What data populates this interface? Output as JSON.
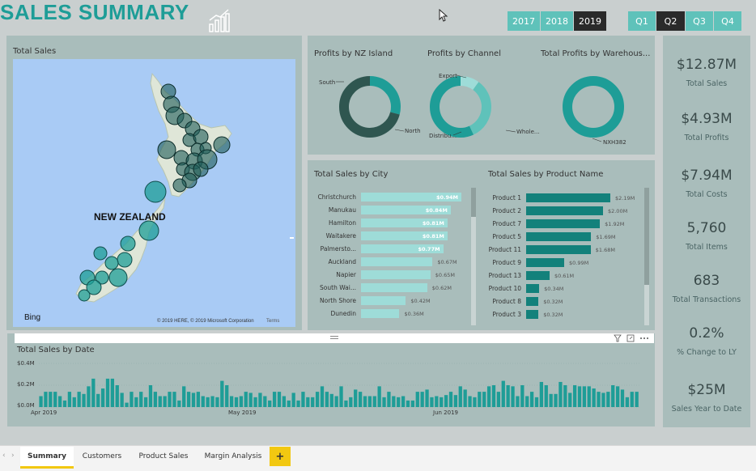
{
  "header": {
    "title": "SALES SUMMARY",
    "icon": "growth-chart-icon"
  },
  "years": [
    {
      "label": "2017",
      "selected": false
    },
    {
      "label": "2018",
      "selected": false
    },
    {
      "label": "2019",
      "selected": true
    }
  ],
  "quarters": [
    {
      "label": "Q1",
      "selected": false
    },
    {
      "label": "Q2",
      "selected": true
    },
    {
      "label": "Q3",
      "selected": false
    },
    {
      "label": "Q4",
      "selected": false
    }
  ],
  "map": {
    "title": "Total Sales",
    "country_label": "NEW ZEALAND",
    "bing_label": "Bing",
    "copyright": "© 2019 HERE, © 2019 Microsoft Corporation",
    "terms": "Terms"
  },
  "donuts": [
    {
      "title": "Profits by NZ Island",
      "labels": [
        {
          "text": "South"
        },
        {
          "text": "North"
        }
      ],
      "slices": [
        0.29,
        0.71
      ],
      "colors": [
        "#1e9d97",
        "#2f5650"
      ]
    },
    {
      "title": "Profits by Channel",
      "labels": [
        {
          "text": "Export"
        },
        {
          "text": "Distribu..."
        },
        {
          "text": "Whole..."
        }
      ],
      "slices": [
        0.1,
        0.33,
        0.57
      ],
      "colors": [
        "#9edcd8",
        "#5fc2ba",
        "#1e9d97"
      ]
    },
    {
      "title": "Total Profits by Warehous...",
      "labels": [
        {
          "text": "NXH382"
        }
      ],
      "slices": [
        1.0
      ],
      "colors": [
        "#1e9d97"
      ]
    }
  ],
  "city_chart": {
    "title": "Total Sales by City",
    "cities": [
      {
        "name": "Christchurch",
        "value": "$0.94M",
        "v": 0.94
      },
      {
        "name": "Manukau",
        "value": "$0.84M",
        "v": 0.84
      },
      {
        "name": "Hamilton",
        "value": "$0.81M",
        "v": 0.81
      },
      {
        "name": "Waitakere",
        "value": "$0.81M",
        "v": 0.81
      },
      {
        "name": "Palmersto...",
        "value": "$0.77M",
        "v": 0.77
      },
      {
        "name": "Auckland",
        "value": "$0.67M",
        "v": 0.67
      },
      {
        "name": "Napier",
        "value": "$0.65M",
        "v": 0.65
      },
      {
        "name": "South Wai...",
        "value": "$0.62M",
        "v": 0.62
      },
      {
        "name": "North Shore",
        "value": "$0.42M",
        "v": 0.42
      },
      {
        "name": "Dunedin",
        "value": "$0.36M",
        "v": 0.36
      }
    ]
  },
  "product_chart": {
    "title": "Total Sales by Product Name",
    "products": [
      {
        "name": "Product 1",
        "value": "$2.19M",
        "v": 2.19
      },
      {
        "name": "Product 2",
        "value": "$2.00M",
        "v": 2.0
      },
      {
        "name": "Product 7",
        "value": "$1.92M",
        "v": 1.92
      },
      {
        "name": "Product 5",
        "value": "$1.69M",
        "v": 1.69
      },
      {
        "name": "Product 11",
        "value": "$1.68M",
        "v": 1.68
      },
      {
        "name": "Product 9",
        "value": "$0.99M",
        "v": 0.99
      },
      {
        "name": "Product 13",
        "value": "$0.61M",
        "v": 0.61
      },
      {
        "name": "Product 10",
        "value": "$0.34M",
        "v": 0.34
      },
      {
        "name": "Product 8",
        "value": "$0.32M",
        "v": 0.32
      },
      {
        "name": "Product 3",
        "value": "$0.32M",
        "v": 0.32
      }
    ]
  },
  "kpis": [
    {
      "value": "$12.87M",
      "label": "Total Sales"
    },
    {
      "value": "$4.93M",
      "label": "Total Profits"
    },
    {
      "value": "$7.94M",
      "label": "Total Costs"
    },
    {
      "value": "5,760",
      "label": "Total Items"
    },
    {
      "value": "683",
      "label": "Total Transactions"
    },
    {
      "value": "0.2%",
      "label": "% Change to LY"
    },
    {
      "value": "$25M",
      "label": "Sales Year to Date"
    }
  ],
  "date_chart": {
    "title": "Total Sales by Date",
    "y_ticks": [
      "$0.4M",
      "$0.2M",
      "$0.0M"
    ],
    "x_ticks": [
      "Apr 2019",
      "May 2019",
      "Jun 2019"
    ]
  },
  "chart_data": {
    "type": "bar",
    "title": "Total Sales by Date",
    "ylim": [
      0,
      0.4
    ],
    "values": [
      0.1,
      0.14,
      0.14,
      0.14,
      0.1,
      0.06,
      0.14,
      0.09,
      0.14,
      0.12,
      0.19,
      0.26,
      0.12,
      0.17,
      0.26,
      0.26,
      0.2,
      0.13,
      0.04,
      0.14,
      0.09,
      0.14,
      0.09,
      0.2,
      0.14,
      0.1,
      0.1,
      0.14,
      0.14,
      0.06,
      0.19,
      0.14,
      0.13,
      0.14,
      0.1,
      0.09,
      0.1,
      0.09,
      0.24,
      0.2,
      0.1,
      0.09,
      0.1,
      0.14,
      0.13,
      0.09,
      0.13,
      0.1,
      0.06,
      0.14,
      0.14,
      0.1,
      0.06,
      0.13,
      0.06,
      0.14,
      0.09,
      0.09,
      0.14,
      0.19,
      0.14,
      0.12,
      0.1,
      0.19,
      0.06,
      0.09,
      0.16,
      0.14,
      0.1,
      0.1,
      0.1,
      0.19,
      0.09,
      0.14,
      0.1,
      0.09,
      0.1,
      0.06,
      0.06,
      0.14,
      0.14,
      0.16,
      0.09,
      0.1,
      0.09,
      0.11,
      0.14,
      0.11,
      0.19,
      0.16,
      0.1,
      0.09,
      0.14,
      0.14,
      0.19,
      0.2,
      0.14,
      0.24,
      0.2,
      0.19,
      0.1,
      0.2,
      0.1,
      0.14,
      0.09,
      0.23,
      0.2,
      0.12,
      0.12,
      0.23,
      0.2,
      0.13,
      0.2,
      0.19,
      0.19,
      0.19,
      0.17,
      0.14,
      0.13,
      0.14,
      0.2,
      0.19,
      0.16,
      0.09,
      0.14,
      0.14
    ]
  },
  "tabs": [
    {
      "label": "Summary",
      "active": true
    },
    {
      "label": "Customers",
      "active": false
    },
    {
      "label": "Product Sales",
      "active": false
    },
    {
      "label": "Margin Analysis",
      "active": false
    }
  ],
  "add_tab_label": "+",
  "colors": {
    "accent": "#1e9d97",
    "light": "#9edcd8",
    "dark_bar": "#13817b",
    "panel": "#a9bdbb",
    "map_water": "#a9cbf5"
  }
}
